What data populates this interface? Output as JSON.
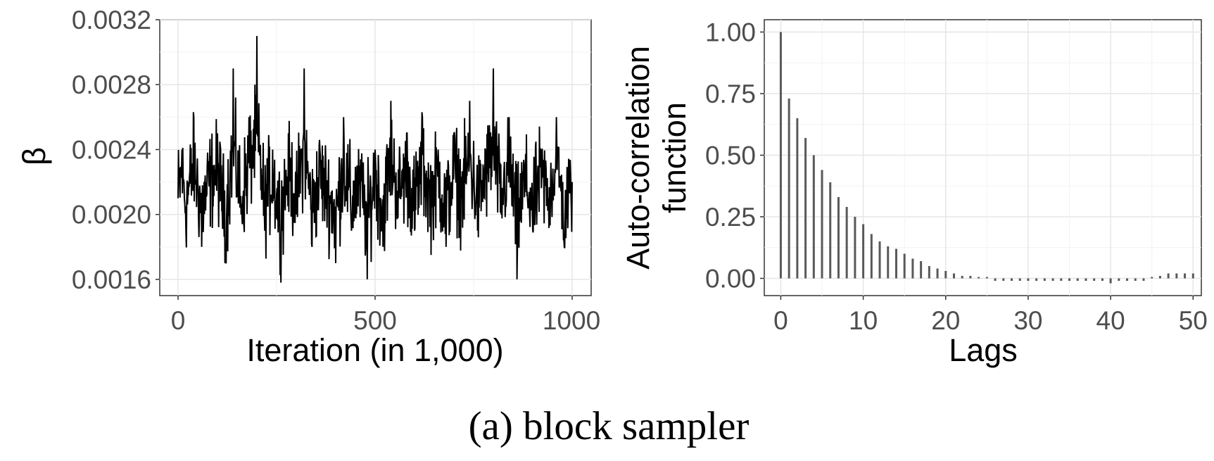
{
  "caption": "(a) block sampler",
  "chart_data": [
    {
      "type": "line",
      "xlabel": "Iteration (in 1,000)",
      "ylabel": "β",
      "xlim": [
        0,
        1000
      ],
      "ylim": [
        0.0015,
        0.0032
      ],
      "x_ticks": [
        "0",
        "500",
        "1000"
      ],
      "y_ticks": [
        "0.0016",
        "0.0020",
        "0.0024",
        "0.0028",
        "0.0032"
      ],
      "grid": true,
      "series_color": "#000000",
      "series": [
        {
          "note_values": "trace of β over 1000 iterations; fluctuates around ~0.0022",
          "x": [
            0,
            10,
            20,
            40,
            60,
            80,
            100,
            120,
            140,
            160,
            180,
            200,
            220,
            240,
            260,
            280,
            300,
            320,
            340,
            360,
            380,
            400,
            420,
            440,
            460,
            480,
            500,
            520,
            540,
            560,
            580,
            600,
            620,
            640,
            660,
            680,
            700,
            720,
            740,
            760,
            780,
            800,
            820,
            840,
            860,
            880,
            900,
            920,
            940,
            960,
            980,
            1000
          ],
          "y": [
            0.0021,
            0.0024,
            0.0019,
            0.0026,
            0.0018,
            0.0023,
            0.0025,
            0.0017,
            0.0029,
            0.002,
            0.0026,
            0.0031,
            0.0019,
            0.0024,
            0.0017,
            0.0025,
            0.002,
            0.0029,
            0.0018,
            0.0024,
            0.0021,
            0.0017,
            0.0026,
            0.0019,
            0.0023,
            0.0016,
            0.0024,
            0.0018,
            0.0027,
            0.0021,
            0.0025,
            0.0019,
            0.0026,
            0.002,
            0.0024,
            0.0018,
            0.0025,
            0.0021,
            0.0027,
            0.0019,
            0.0024,
            0.0029,
            0.002,
            0.0026,
            0.0016,
            0.0023,
            0.0019,
            0.0024,
            0.0021,
            0.0026,
            0.0018,
            0.0022
          ]
        }
      ]
    },
    {
      "type": "bar",
      "xlabel": "Lags",
      "ylabel_lines": [
        "Auto-correlation",
        "function"
      ],
      "xlim": [
        -2,
        51
      ],
      "ylim": [
        -0.07,
        1.05
      ],
      "x_ticks": [
        "0",
        "10",
        "20",
        "30",
        "40",
        "50"
      ],
      "y_ticks": [
        "0.00",
        "0.25",
        "0.50",
        "0.75",
        "1.00"
      ],
      "grid": true,
      "bar_color": "#595959",
      "lags": [
        0,
        1,
        2,
        3,
        4,
        5,
        6,
        7,
        8,
        9,
        10,
        11,
        12,
        13,
        14,
        15,
        16,
        17,
        18,
        19,
        20,
        21,
        22,
        23,
        24,
        25,
        26,
        27,
        28,
        29,
        30,
        31,
        32,
        33,
        34,
        35,
        36,
        37,
        38,
        39,
        40,
        41,
        42,
        43,
        44,
        45,
        46,
        47,
        48,
        49,
        50
      ],
      "values": [
        1.0,
        0.73,
        0.65,
        0.57,
        0.5,
        0.44,
        0.39,
        0.33,
        0.29,
        0.25,
        0.22,
        0.18,
        0.15,
        0.13,
        0.12,
        0.1,
        0.08,
        0.07,
        0.05,
        0.04,
        0.03,
        0.02,
        0.01,
        0.01,
        0.0,
        0.0,
        -0.01,
        -0.01,
        -0.01,
        -0.01,
        -0.01,
        -0.01,
        -0.01,
        -0.01,
        -0.01,
        -0.01,
        -0.01,
        -0.01,
        -0.01,
        -0.01,
        -0.02,
        -0.01,
        -0.01,
        -0.01,
        -0.01,
        0.0,
        0.01,
        0.02,
        0.02,
        0.02,
        0.02
      ]
    }
  ]
}
